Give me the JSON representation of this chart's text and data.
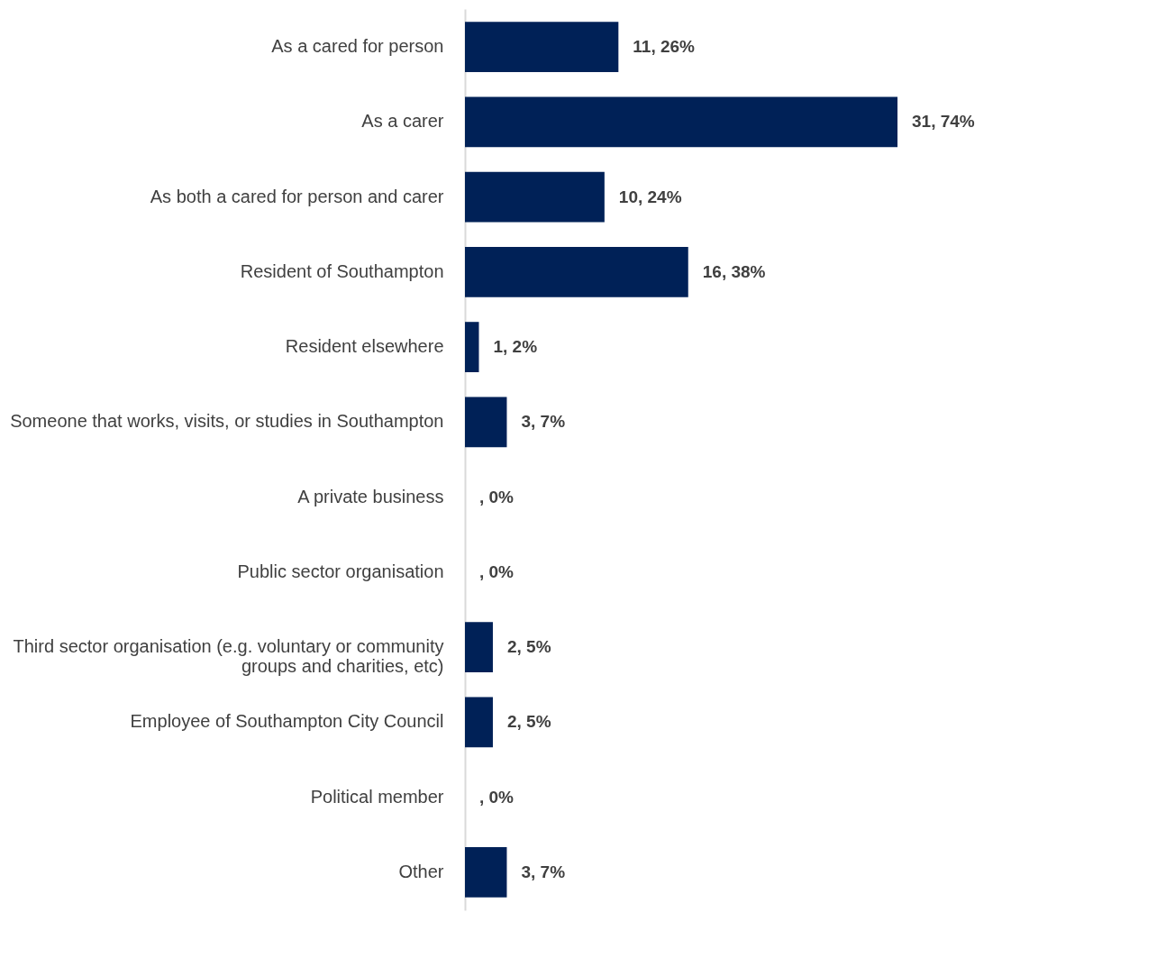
{
  "chart_data": {
    "type": "bar",
    "orientation": "horizontal",
    "categories": [
      "As a cared for person",
      "As a carer",
      "As both a cared for person and carer",
      "Resident of Southampton",
      "Resident elsewhere",
      "Someone that works, visits, or studies in Southampton",
      "A private business",
      "Public sector organisation",
      "Third sector organisation (e.g. voluntary or community groups and charities, etc)",
      "Employee of Southampton City Council",
      "Political member",
      "Other"
    ],
    "values": [
      11,
      31,
      10,
      16,
      1,
      3,
      0,
      0,
      2,
      2,
      0,
      3
    ],
    "value_labels": [
      "11, 26%",
      "31, 74%",
      "10, 24%",
      "16, 38%",
      "1, 2%",
      "3, 7%",
      ", 0%",
      ", 0%",
      "2, 5%",
      "2, 5%",
      ", 0%",
      "3, 7%"
    ],
    "color": "#002157",
    "grid": false
  }
}
